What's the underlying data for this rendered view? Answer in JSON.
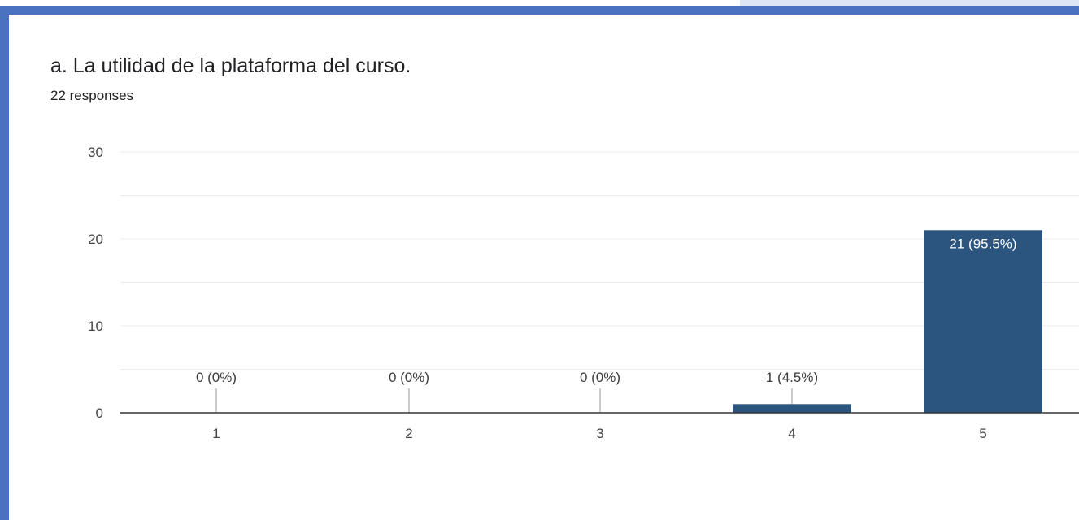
{
  "form": {
    "question": "a. La utilidad de la plataforma del curso.",
    "responses": "22 responses"
  },
  "colors": {
    "bar": "#2b557e",
    "frame": "#4a72c0",
    "grid": "#ebebeb",
    "axis": "#333333"
  },
  "chart_data": {
    "type": "bar",
    "title": "",
    "xlabel": "",
    "ylabel": "",
    "categories": [
      "1",
      "2",
      "3",
      "4",
      "5"
    ],
    "values": [
      0,
      0,
      0,
      1,
      21
    ],
    "data_labels": [
      "0 (0%)",
      "0 (0%)",
      "0 (0%)",
      "1 (4.5%)",
      "21 (95.5%)"
    ],
    "ylim": [
      0,
      30
    ],
    "yticks": [
      0,
      10,
      20,
      30
    ],
    "grid": true,
    "legend": "none"
  }
}
